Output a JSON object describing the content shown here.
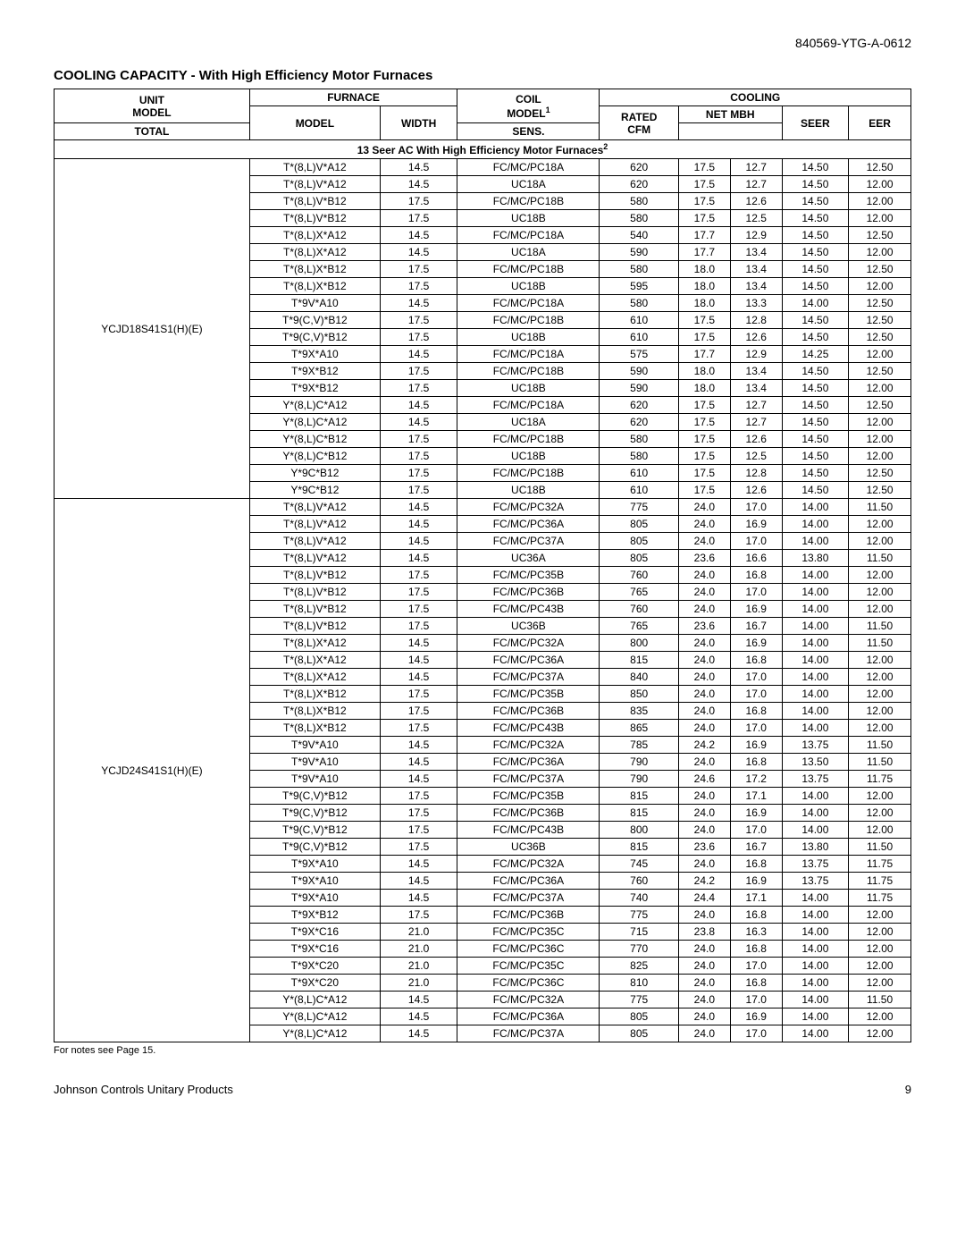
{
  "docId": "840569-YTG-A-0612",
  "title": "COOLING CAPACITY - With High Efficiency Motor Furnaces",
  "sectionTitle": "13 Seer AC With High Efficiency Motor Furnaces",
  "headers": {
    "unit": "UNIT",
    "unitModel": "MODEL",
    "furnace": "FURNACE",
    "furnaceModel": "MODEL",
    "furnaceWidth": "WIDTH",
    "coil": "COIL",
    "coilModel": "MODEL",
    "cooling": "COOLING",
    "ratedCfm": "RATED CFM",
    "netMbh": "NET MBH",
    "total": "TOTAL",
    "sens": "SENS.",
    "seer": "SEER",
    "eer": "EER"
  },
  "footnote": "For notes see Page 15.",
  "footerLeft": "Johnson Controls Unitary Products",
  "footerRight": "9",
  "groups": [
    {
      "unitModel": "YCJD18S41S1(H)(E)",
      "rows": [
        [
          "T*(8,L)V*A12",
          "14.5",
          "FC/MC/PC18A",
          "620",
          "17.5",
          "12.7",
          "14.50",
          "12.50"
        ],
        [
          "T*(8,L)V*A12",
          "14.5",
          "UC18A",
          "620",
          "17.5",
          "12.7",
          "14.50",
          "12.00"
        ],
        [
          "T*(8,L)V*B12",
          "17.5",
          "FC/MC/PC18B",
          "580",
          "17.5",
          "12.6",
          "14.50",
          "12.00"
        ],
        [
          "T*(8,L)V*B12",
          "17.5",
          "UC18B",
          "580",
          "17.5",
          "12.5",
          "14.50",
          "12.00"
        ],
        [
          "T*(8,L)X*A12",
          "14.5",
          "FC/MC/PC18A",
          "540",
          "17.7",
          "12.9",
          "14.50",
          "12.50"
        ],
        [
          "T*(8,L)X*A12",
          "14.5",
          "UC18A",
          "590",
          "17.7",
          "13.4",
          "14.50",
          "12.00"
        ],
        [
          "T*(8,L)X*B12",
          "17.5",
          "FC/MC/PC18B",
          "580",
          "18.0",
          "13.4",
          "14.50",
          "12.50"
        ],
        [
          "T*(8,L)X*B12",
          "17.5",
          "UC18B",
          "595",
          "18.0",
          "13.4",
          "14.50",
          "12.00"
        ],
        [
          "T*9V*A10",
          "14.5",
          "FC/MC/PC18A",
          "580",
          "18.0",
          "13.3",
          "14.00",
          "12.50"
        ],
        [
          "T*9(C,V)*B12",
          "17.5",
          "FC/MC/PC18B",
          "610",
          "17.5",
          "12.8",
          "14.50",
          "12.50"
        ],
        [
          "T*9(C,V)*B12",
          "17.5",
          "UC18B",
          "610",
          "17.5",
          "12.6",
          "14.50",
          "12.50"
        ],
        [
          "T*9X*A10",
          "14.5",
          "FC/MC/PC18A",
          "575",
          "17.7",
          "12.9",
          "14.25",
          "12.00"
        ],
        [
          "T*9X*B12",
          "17.5",
          "FC/MC/PC18B",
          "590",
          "18.0",
          "13.4",
          "14.50",
          "12.50"
        ],
        [
          "T*9X*B12",
          "17.5",
          "UC18B",
          "590",
          "18.0",
          "13.4",
          "14.50",
          "12.00"
        ],
        [
          "Y*(8,L)C*A12",
          "14.5",
          "FC/MC/PC18A",
          "620",
          "17.5",
          "12.7",
          "14.50",
          "12.50"
        ],
        [
          "Y*(8,L)C*A12",
          "14.5",
          "UC18A",
          "620",
          "17.5",
          "12.7",
          "14.50",
          "12.00"
        ],
        [
          "Y*(8,L)C*B12",
          "17.5",
          "FC/MC/PC18B",
          "580",
          "17.5",
          "12.6",
          "14.50",
          "12.00"
        ],
        [
          "Y*(8,L)C*B12",
          "17.5",
          "UC18B",
          "580",
          "17.5",
          "12.5",
          "14.50",
          "12.00"
        ],
        [
          "Y*9C*B12",
          "17.5",
          "FC/MC/PC18B",
          "610",
          "17.5",
          "12.8",
          "14.50",
          "12.50"
        ],
        [
          "Y*9C*B12",
          "17.5",
          "UC18B",
          "610",
          "17.5",
          "12.6",
          "14.50",
          "12.50"
        ]
      ]
    },
    {
      "unitModel": "YCJD24S41S1(H)(E)",
      "rows": [
        [
          "T*(8,L)V*A12",
          "14.5",
          "FC/MC/PC32A",
          "775",
          "24.0",
          "17.0",
          "14.00",
          "11.50"
        ],
        [
          "T*(8,L)V*A12",
          "14.5",
          "FC/MC/PC36A",
          "805",
          "24.0",
          "16.9",
          "14.00",
          "12.00"
        ],
        [
          "T*(8,L)V*A12",
          "14.5",
          "FC/MC/PC37A",
          "805",
          "24.0",
          "17.0",
          "14.00",
          "12.00"
        ],
        [
          "T*(8,L)V*A12",
          "14.5",
          "UC36A",
          "805",
          "23.6",
          "16.6",
          "13.80",
          "11.50"
        ],
        [
          "T*(8,L)V*B12",
          "17.5",
          "FC/MC/PC35B",
          "760",
          "24.0",
          "16.8",
          "14.00",
          "12.00"
        ],
        [
          "T*(8,L)V*B12",
          "17.5",
          "FC/MC/PC36B",
          "765",
          "24.0",
          "17.0",
          "14.00",
          "12.00"
        ],
        [
          "T*(8,L)V*B12",
          "17.5",
          "FC/MC/PC43B",
          "760",
          "24.0",
          "16.9",
          "14.00",
          "12.00"
        ],
        [
          "T*(8,L)V*B12",
          "17.5",
          "UC36B",
          "765",
          "23.6",
          "16.7",
          "14.00",
          "11.50"
        ],
        [
          "T*(8,L)X*A12",
          "14.5",
          "FC/MC/PC32A",
          "800",
          "24.0",
          "16.9",
          "14.00",
          "11.50"
        ],
        [
          "T*(8,L)X*A12",
          "14.5",
          "FC/MC/PC36A",
          "815",
          "24.0",
          "16.8",
          "14.00",
          "12.00"
        ],
        [
          "T*(8,L)X*A12",
          "14.5",
          "FC/MC/PC37A",
          "840",
          "24.0",
          "17.0",
          "14.00",
          "12.00"
        ],
        [
          "T*(8,L)X*B12",
          "17.5",
          "FC/MC/PC35B",
          "850",
          "24.0",
          "17.0",
          "14.00",
          "12.00"
        ],
        [
          "T*(8,L)X*B12",
          "17.5",
          "FC/MC/PC36B",
          "835",
          "24.0",
          "16.8",
          "14.00",
          "12.00"
        ],
        [
          "T*(8,L)X*B12",
          "17.5",
          "FC/MC/PC43B",
          "865",
          "24.0",
          "17.0",
          "14.00",
          "12.00"
        ],
        [
          "T*9V*A10",
          "14.5",
          "FC/MC/PC32A",
          "785",
          "24.2",
          "16.9",
          "13.75",
          "11.50"
        ],
        [
          "T*9V*A10",
          "14.5",
          "FC/MC/PC36A",
          "790",
          "24.0",
          "16.8",
          "13.50",
          "11.50"
        ],
        [
          "T*9V*A10",
          "14.5",
          "FC/MC/PC37A",
          "790",
          "24.6",
          "17.2",
          "13.75",
          "11.75"
        ],
        [
          "T*9(C,V)*B12",
          "17.5",
          "FC/MC/PC35B",
          "815",
          "24.0",
          "17.1",
          "14.00",
          "12.00"
        ],
        [
          "T*9(C,V)*B12",
          "17.5",
          "FC/MC/PC36B",
          "815",
          "24.0",
          "16.9",
          "14.00",
          "12.00"
        ],
        [
          "T*9(C,V)*B12",
          "17.5",
          "FC/MC/PC43B",
          "800",
          "24.0",
          "17.0",
          "14.00",
          "12.00"
        ],
        [
          "T*9(C,V)*B12",
          "17.5",
          "UC36B",
          "815",
          "23.6",
          "16.7",
          "13.80",
          "11.50"
        ],
        [
          "T*9X*A10",
          "14.5",
          "FC/MC/PC32A",
          "745",
          "24.0",
          "16.8",
          "13.75",
          "11.75"
        ],
        [
          "T*9X*A10",
          "14.5",
          "FC/MC/PC36A",
          "760",
          "24.2",
          "16.9",
          "13.75",
          "11.75"
        ],
        [
          "T*9X*A10",
          "14.5",
          "FC/MC/PC37A",
          "740",
          "24.4",
          "17.1",
          "14.00",
          "11.75"
        ],
        [
          "T*9X*B12",
          "17.5",
          "FC/MC/PC36B",
          "775",
          "24.0",
          "16.8",
          "14.00",
          "12.00"
        ],
        [
          "T*9X*C16",
          "21.0",
          "FC/MC/PC35C",
          "715",
          "23.8",
          "16.3",
          "14.00",
          "12.00"
        ],
        [
          "T*9X*C16",
          "21.0",
          "FC/MC/PC36C",
          "770",
          "24.0",
          "16.8",
          "14.00",
          "12.00"
        ],
        [
          "T*9X*C20",
          "21.0",
          "FC/MC/PC35C",
          "825",
          "24.0",
          "17.0",
          "14.00",
          "12.00"
        ],
        [
          "T*9X*C20",
          "21.0",
          "FC/MC/PC36C",
          "810",
          "24.0",
          "16.8",
          "14.00",
          "12.00"
        ],
        [
          "Y*(8,L)C*A12",
          "14.5",
          "FC/MC/PC32A",
          "775",
          "24.0",
          "17.0",
          "14.00",
          "11.50"
        ],
        [
          "Y*(8,L)C*A12",
          "14.5",
          "FC/MC/PC36A",
          "805",
          "24.0",
          "16.9",
          "14.00",
          "12.00"
        ],
        [
          "Y*(8,L)C*A12",
          "14.5",
          "FC/MC/PC37A",
          "805",
          "24.0",
          "17.0",
          "14.00",
          "12.00"
        ]
      ]
    }
  ]
}
